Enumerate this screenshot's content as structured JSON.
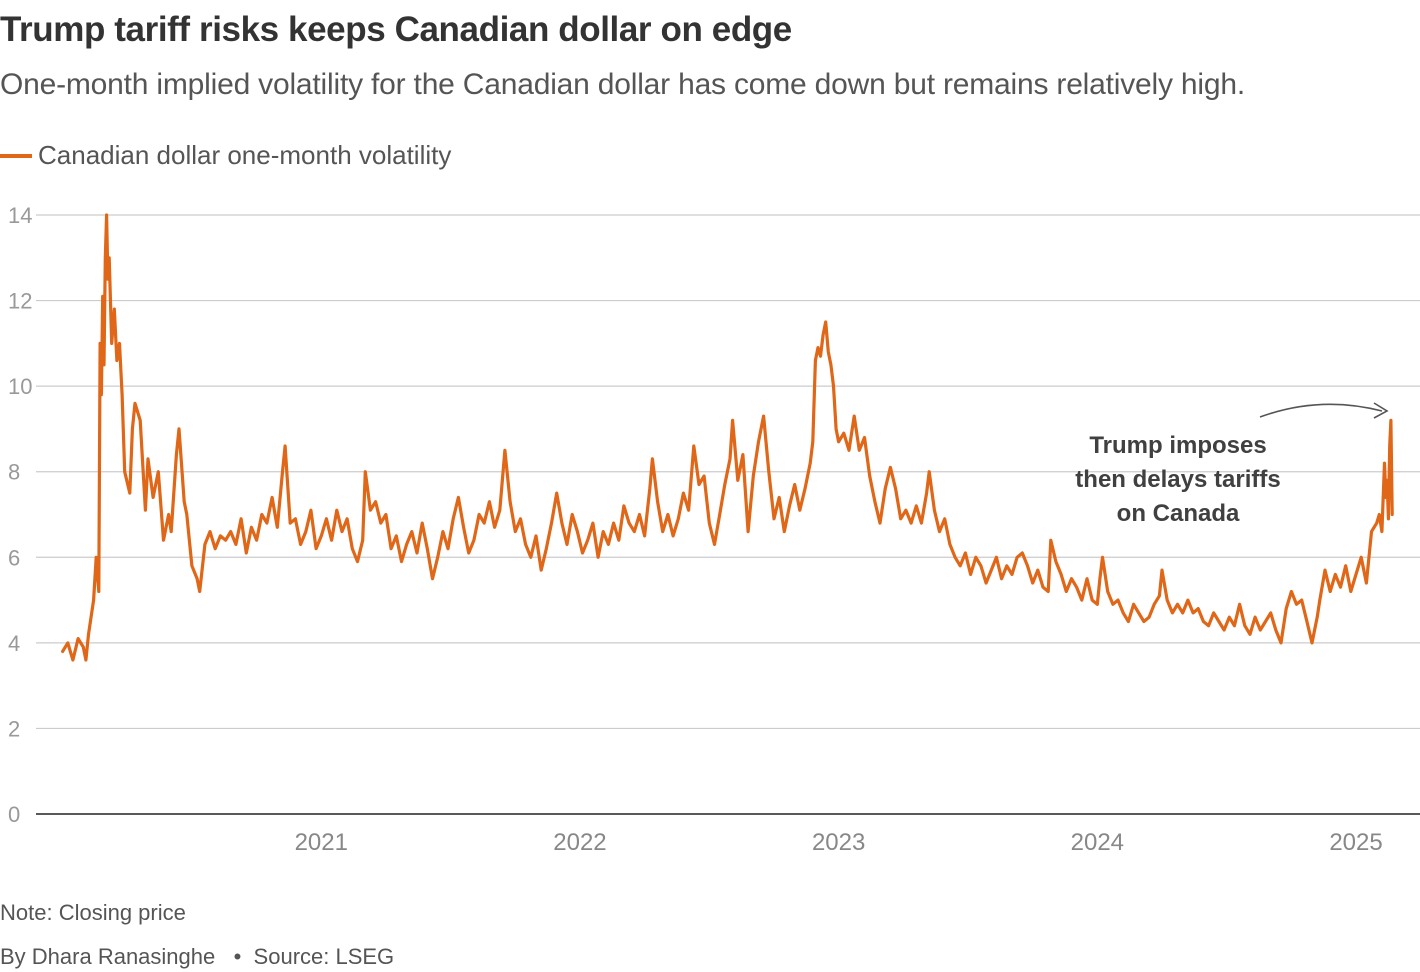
{
  "title": "Trump tariff risks keeps Canadian dollar on edge",
  "subtitle": "One-month implied volatility for the Canadian dollar has come down but remains relatively high.",
  "legend": {
    "label": "Canadian dollar one-month volatility",
    "color": "#e06618"
  },
  "annotation": {
    "lines": [
      "Trump imposes",
      "then delays tariffs",
      "on Canada"
    ]
  },
  "footer": {
    "note": "Note: Closing price",
    "author": "By Dhara Ranasinghe",
    "source": "Source: LSEG"
  },
  "chart_data": {
    "type": "line",
    "ylim": [
      0,
      14
    ],
    "yticks": [
      0,
      2,
      4,
      6,
      8,
      10,
      12,
      14
    ],
    "ytick_labels": [
      "0",
      "2",
      "4",
      "6",
      "8",
      "10",
      "12",
      "14"
    ],
    "xticks": [
      2021,
      2022,
      2023,
      2024,
      2025
    ],
    "xtick_labels": [
      "2021",
      "2022",
      "2023",
      "2024",
      "2025"
    ],
    "xlim": [
      2019.99,
      2025.17
    ],
    "grid": true,
    "series": [
      {
        "name": "Canadian dollar one-month volatility",
        "color": "#e06618",
        "points": [
          [
            2020.0,
            3.8
          ],
          [
            2020.02,
            4.0
          ],
          [
            2020.04,
            3.6
          ],
          [
            2020.06,
            4.1
          ],
          [
            2020.08,
            3.9
          ],
          [
            2020.09,
            3.6
          ],
          [
            2020.1,
            4.2
          ],
          [
            2020.12,
            5.0
          ],
          [
            2020.13,
            6.0
          ],
          [
            2020.14,
            5.2
          ],
          [
            2020.145,
            11.0
          ],
          [
            2020.15,
            9.8
          ],
          [
            2020.155,
            12.1
          ],
          [
            2020.16,
            10.5
          ],
          [
            2020.165,
            13.0
          ],
          [
            2020.17,
            14.0
          ],
          [
            2020.175,
            12.5
          ],
          [
            2020.18,
            13.0
          ],
          [
            2020.19,
            11.0
          ],
          [
            2020.2,
            11.8
          ],
          [
            2020.21,
            10.6
          ],
          [
            2020.22,
            11.0
          ],
          [
            2020.23,
            9.8
          ],
          [
            2020.24,
            8.0
          ],
          [
            2020.26,
            7.5
          ],
          [
            2020.27,
            9.0
          ],
          [
            2020.28,
            9.6
          ],
          [
            2020.3,
            9.2
          ],
          [
            2020.32,
            7.1
          ],
          [
            2020.33,
            8.3
          ],
          [
            2020.35,
            7.4
          ],
          [
            2020.37,
            8.0
          ],
          [
            2020.39,
            6.4
          ],
          [
            2020.41,
            7.0
          ],
          [
            2020.42,
            6.6
          ],
          [
            2020.44,
            8.4
          ],
          [
            2020.45,
            9.0
          ],
          [
            2020.47,
            7.3
          ],
          [
            2020.48,
            7.0
          ],
          [
            2020.5,
            5.8
          ],
          [
            2020.52,
            5.5
          ],
          [
            2020.53,
            5.2
          ],
          [
            2020.55,
            6.3
          ],
          [
            2020.57,
            6.6
          ],
          [
            2020.59,
            6.2
          ],
          [
            2020.61,
            6.5
          ],
          [
            2020.63,
            6.4
          ],
          [
            2020.65,
            6.6
          ],
          [
            2020.67,
            6.3
          ],
          [
            2020.69,
            6.9
          ],
          [
            2020.71,
            6.1
          ],
          [
            2020.73,
            6.7
          ],
          [
            2020.75,
            6.4
          ],
          [
            2020.77,
            7.0
          ],
          [
            2020.79,
            6.8
          ],
          [
            2020.81,
            7.4
          ],
          [
            2020.83,
            6.7
          ],
          [
            2020.85,
            8.0
          ],
          [
            2020.86,
            8.6
          ],
          [
            2020.88,
            6.8
          ],
          [
            2020.9,
            6.9
          ],
          [
            2020.92,
            6.3
          ],
          [
            2020.94,
            6.6
          ],
          [
            2020.96,
            7.1
          ],
          [
            2020.98,
            6.2
          ],
          [
            2021.0,
            6.5
          ],
          [
            2021.02,
            6.9
          ],
          [
            2021.04,
            6.4
          ],
          [
            2021.06,
            7.1
          ],
          [
            2021.08,
            6.6
          ],
          [
            2021.1,
            6.9
          ],
          [
            2021.12,
            6.2
          ],
          [
            2021.14,
            5.9
          ],
          [
            2021.16,
            6.4
          ],
          [
            2021.17,
            8.0
          ],
          [
            2021.19,
            7.1
          ],
          [
            2021.21,
            7.3
          ],
          [
            2021.23,
            6.8
          ],
          [
            2021.25,
            7.0
          ],
          [
            2021.27,
            6.2
          ],
          [
            2021.29,
            6.5
          ],
          [
            2021.31,
            5.9
          ],
          [
            2021.33,
            6.3
          ],
          [
            2021.35,
            6.6
          ],
          [
            2021.37,
            6.1
          ],
          [
            2021.39,
            6.8
          ],
          [
            2021.41,
            6.2
          ],
          [
            2021.43,
            5.5
          ],
          [
            2021.45,
            6.0
          ],
          [
            2021.47,
            6.6
          ],
          [
            2021.49,
            6.2
          ],
          [
            2021.51,
            6.9
          ],
          [
            2021.53,
            7.4
          ],
          [
            2021.55,
            6.7
          ],
          [
            2021.57,
            6.1
          ],
          [
            2021.59,
            6.4
          ],
          [
            2021.61,
            7.0
          ],
          [
            2021.63,
            6.8
          ],
          [
            2021.65,
            7.3
          ],
          [
            2021.67,
            6.7
          ],
          [
            2021.69,
            7.1
          ],
          [
            2021.71,
            8.5
          ],
          [
            2021.73,
            7.3
          ],
          [
            2021.75,
            6.6
          ],
          [
            2021.77,
            6.9
          ],
          [
            2021.79,
            6.3
          ],
          [
            2021.81,
            6.0
          ],
          [
            2021.83,
            6.5
          ],
          [
            2021.85,
            5.7
          ],
          [
            2021.87,
            6.2
          ],
          [
            2021.89,
            6.8
          ],
          [
            2021.91,
            7.5
          ],
          [
            2021.93,
            6.8
          ],
          [
            2021.95,
            6.3
          ],
          [
            2021.97,
            7.0
          ],
          [
            2021.99,
            6.6
          ],
          [
            2022.01,
            6.1
          ],
          [
            2022.03,
            6.4
          ],
          [
            2022.05,
            6.8
          ],
          [
            2022.07,
            6.0
          ],
          [
            2022.09,
            6.6
          ],
          [
            2022.11,
            6.3
          ],
          [
            2022.13,
            6.8
          ],
          [
            2022.15,
            6.4
          ],
          [
            2022.17,
            7.2
          ],
          [
            2022.19,
            6.8
          ],
          [
            2022.21,
            6.6
          ],
          [
            2022.23,
            7.0
          ],
          [
            2022.25,
            6.5
          ],
          [
            2022.27,
            7.6
          ],
          [
            2022.28,
            8.3
          ],
          [
            2022.3,
            7.3
          ],
          [
            2022.32,
            6.6
          ],
          [
            2022.34,
            7.0
          ],
          [
            2022.36,
            6.5
          ],
          [
            2022.38,
            6.9
          ],
          [
            2022.4,
            7.5
          ],
          [
            2022.42,
            7.1
          ],
          [
            2022.44,
            8.6
          ],
          [
            2022.46,
            7.7
          ],
          [
            2022.48,
            7.9
          ],
          [
            2022.5,
            6.8
          ],
          [
            2022.52,
            6.3
          ],
          [
            2022.54,
            7.0
          ],
          [
            2022.56,
            7.7
          ],
          [
            2022.58,
            8.3
          ],
          [
            2022.59,
            9.2
          ],
          [
            2022.61,
            7.8
          ],
          [
            2022.63,
            8.4
          ],
          [
            2022.65,
            6.6
          ],
          [
            2022.67,
            7.9
          ],
          [
            2022.69,
            8.7
          ],
          [
            2022.71,
            9.3
          ],
          [
            2022.73,
            8.0
          ],
          [
            2022.75,
            6.9
          ],
          [
            2022.77,
            7.4
          ],
          [
            2022.79,
            6.6
          ],
          [
            2022.81,
            7.2
          ],
          [
            2022.83,
            7.7
          ],
          [
            2022.85,
            7.1
          ],
          [
            2022.87,
            7.6
          ],
          [
            2022.89,
            8.2
          ],
          [
            2022.9,
            8.7
          ],
          [
            2022.91,
            10.6
          ],
          [
            2022.92,
            10.9
          ],
          [
            2022.93,
            10.7
          ],
          [
            2022.94,
            11.2
          ],
          [
            2022.95,
            11.5
          ],
          [
            2022.96,
            10.8
          ],
          [
            2022.97,
            10.5
          ],
          [
            2022.98,
            10.0
          ],
          [
            2022.99,
            9.0
          ],
          [
            2023.0,
            8.7
          ],
          [
            2023.02,
            8.9
          ],
          [
            2023.04,
            8.5
          ],
          [
            2023.06,
            9.3
          ],
          [
            2023.08,
            8.5
          ],
          [
            2023.1,
            8.8
          ],
          [
            2023.12,
            7.9
          ],
          [
            2023.14,
            7.3
          ],
          [
            2023.16,
            6.8
          ],
          [
            2023.18,
            7.6
          ],
          [
            2023.2,
            8.1
          ],
          [
            2023.22,
            7.6
          ],
          [
            2023.24,
            6.9
          ],
          [
            2023.26,
            7.1
          ],
          [
            2023.28,
            6.8
          ],
          [
            2023.3,
            7.2
          ],
          [
            2023.32,
            6.8
          ],
          [
            2023.34,
            7.5
          ],
          [
            2023.35,
            8.0
          ],
          [
            2023.37,
            7.1
          ],
          [
            2023.39,
            6.6
          ],
          [
            2023.41,
            6.9
          ],
          [
            2023.43,
            6.3
          ],
          [
            2023.45,
            6.0
          ],
          [
            2023.47,
            5.8
          ],
          [
            2023.49,
            6.1
          ],
          [
            2023.51,
            5.6
          ],
          [
            2023.53,
            6.0
          ],
          [
            2023.55,
            5.8
          ],
          [
            2023.57,
            5.4
          ],
          [
            2023.59,
            5.7
          ],
          [
            2023.61,
            6.0
          ],
          [
            2023.63,
            5.5
          ],
          [
            2023.65,
            5.8
          ],
          [
            2023.67,
            5.6
          ],
          [
            2023.69,
            6.0
          ],
          [
            2023.71,
            6.1
          ],
          [
            2023.73,
            5.8
          ],
          [
            2023.75,
            5.4
          ],
          [
            2023.77,
            5.7
          ],
          [
            2023.79,
            5.3
          ],
          [
            2023.81,
            5.2
          ],
          [
            2023.82,
            6.4
          ],
          [
            2023.84,
            5.9
          ],
          [
            2023.86,
            5.6
          ],
          [
            2023.88,
            5.2
          ],
          [
            2023.9,
            5.5
          ],
          [
            2023.92,
            5.3
          ],
          [
            2023.94,
            5.0
          ],
          [
            2023.96,
            5.5
          ],
          [
            2023.98,
            5.0
          ],
          [
            2024.0,
            4.9
          ],
          [
            2024.01,
            5.5
          ],
          [
            2024.02,
            6.0
          ],
          [
            2024.04,
            5.2
          ],
          [
            2024.06,
            4.9
          ],
          [
            2024.08,
            5.0
          ],
          [
            2024.1,
            4.7
          ],
          [
            2024.12,
            4.5
          ],
          [
            2024.14,
            4.9
          ],
          [
            2024.16,
            4.7
          ],
          [
            2024.18,
            4.5
          ],
          [
            2024.2,
            4.6
          ],
          [
            2024.22,
            4.9
          ],
          [
            2024.24,
            5.1
          ],
          [
            2024.25,
            5.7
          ],
          [
            2024.27,
            5.0
          ],
          [
            2024.29,
            4.7
          ],
          [
            2024.31,
            4.9
          ],
          [
            2024.33,
            4.7
          ],
          [
            2024.35,
            5.0
          ],
          [
            2024.37,
            4.7
          ],
          [
            2024.39,
            4.8
          ],
          [
            2024.41,
            4.5
          ],
          [
            2024.43,
            4.4
          ],
          [
            2024.45,
            4.7
          ],
          [
            2024.47,
            4.5
          ],
          [
            2024.49,
            4.3
          ],
          [
            2024.51,
            4.6
          ],
          [
            2024.53,
            4.4
          ],
          [
            2024.55,
            4.9
          ],
          [
            2024.57,
            4.4
          ],
          [
            2024.59,
            4.2
          ],
          [
            2024.61,
            4.6
          ],
          [
            2024.63,
            4.3
          ],
          [
            2024.65,
            4.5
          ],
          [
            2024.67,
            4.7
          ],
          [
            2024.69,
            4.3
          ],
          [
            2024.71,
            4.0
          ],
          [
            2024.73,
            4.8
          ],
          [
            2024.75,
            5.2
          ],
          [
            2024.77,
            4.9
          ],
          [
            2024.79,
            5.0
          ],
          [
            2024.81,
            4.5
          ],
          [
            2024.83,
            4.0
          ],
          [
            2024.85,
            4.6
          ],
          [
            2024.86,
            5.0
          ],
          [
            2024.88,
            5.7
          ],
          [
            2024.9,
            5.2
          ],
          [
            2024.92,
            5.6
          ],
          [
            2024.94,
            5.3
          ],
          [
            2024.96,
            5.8
          ],
          [
            2024.98,
            5.2
          ],
          [
            2025.0,
            5.6
          ],
          [
            2025.02,
            6.0
          ],
          [
            2025.04,
            5.4
          ],
          [
            2025.06,
            6.6
          ],
          [
            2025.08,
            6.8
          ],
          [
            2025.09,
            7.0
          ],
          [
            2025.1,
            6.6
          ],
          [
            2025.11,
            8.2
          ],
          [
            2025.115,
            7.4
          ],
          [
            2025.12,
            7.8
          ],
          [
            2025.125,
            6.9
          ],
          [
            2025.13,
            8.6
          ],
          [
            2025.135,
            9.2
          ],
          [
            2025.14,
            7.0
          ]
        ]
      }
    ]
  }
}
